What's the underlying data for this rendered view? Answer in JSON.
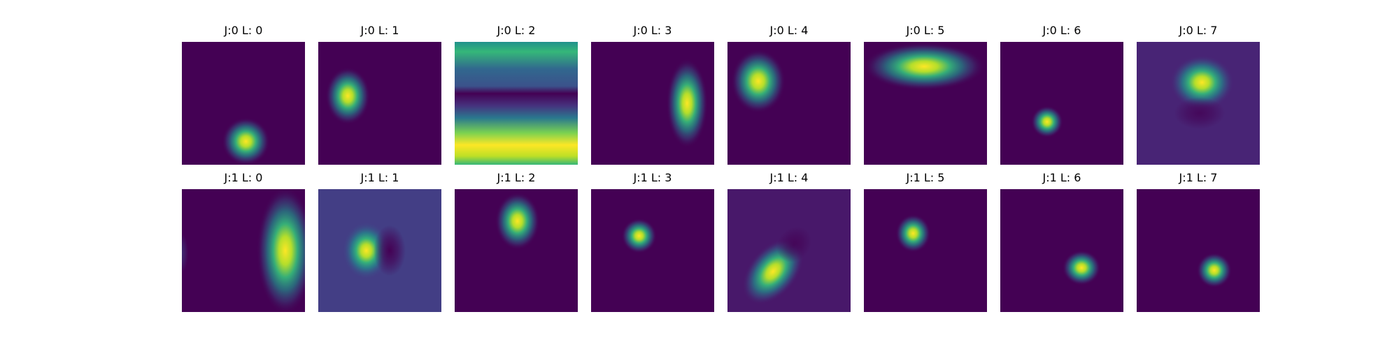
{
  "chart_data": {
    "type": "heatmap",
    "colormap": "viridis",
    "colors": {
      "dark": "#440154",
      "mid": "#21918c",
      "bright": "#fde725"
    },
    "panels": [
      {
        "title": "J:0 L: 0",
        "background": "#440154",
        "blobs": [
          {
            "cx": 0.52,
            "cy": 0.81,
            "sx": 0.075,
            "sy": 0.075,
            "rot": 0,
            "amp": 1.0,
            "color": "#fde725"
          }
        ]
      },
      {
        "title": "J:0 L: 1",
        "background": "#440154",
        "blobs": [
          {
            "cx": 0.24,
            "cy": 0.44,
            "sx": 0.07,
            "sy": 0.09,
            "rot": 0,
            "amp": 1.0,
            "color": "#fde725"
          }
        ]
      },
      {
        "title": "J:0 L: 2",
        "background": "#440154",
        "bands": [
          {
            "y": 0.0,
            "color": "#21918c"
          },
          {
            "y": 0.08,
            "color": "#35b779"
          },
          {
            "y": 0.22,
            "color": "#31688e"
          },
          {
            "y": 0.36,
            "color": "#3b528b"
          },
          {
            "y": 0.42,
            "color": "#440154"
          },
          {
            "y": 0.52,
            "color": "#46327e"
          },
          {
            "y": 0.62,
            "color": "#2a788e"
          },
          {
            "y": 0.74,
            "color": "#7ad151"
          },
          {
            "y": 0.84,
            "color": "#fde725"
          },
          {
            "y": 0.93,
            "color": "#bddf26"
          },
          {
            "y": 1.0,
            "color": "#35b779"
          }
        ]
      },
      {
        "title": "J:0 L: 3",
        "background": "#440154",
        "blobs": [
          {
            "cx": 0.78,
            "cy": 0.5,
            "sx": 0.065,
            "sy": 0.14,
            "rot": 0,
            "amp": 1.0,
            "color": "#fde725"
          }
        ]
      },
      {
        "title": "J:0 L: 4",
        "background": "#440154",
        "blobs": [
          {
            "cx": 0.25,
            "cy": 0.32,
            "sx": 0.085,
            "sy": 0.1,
            "rot": 0,
            "amp": 1.0,
            "color": "#fde725"
          }
        ]
      },
      {
        "title": "J:0 L: 5",
        "background": "#440154",
        "blobs": [
          {
            "cx": 0.49,
            "cy": 0.2,
            "sx": 0.19,
            "sy": 0.075,
            "rot": 0,
            "amp": 1.0,
            "color": "#fde725"
          }
        ]
      },
      {
        "title": "J:0 L: 6",
        "background": "#440154",
        "blobs": [
          {
            "cx": 0.38,
            "cy": 0.65,
            "sx": 0.05,
            "sy": 0.05,
            "rot": 0,
            "amp": 1.0,
            "color": "#fde725"
          }
        ]
      },
      {
        "title": "J:0 L: 7",
        "background": "#482475",
        "blobs": [
          {
            "cx": 0.53,
            "cy": 0.33,
            "sx": 0.1,
            "sy": 0.085,
            "rot": 0,
            "amp": 1.0,
            "color": "#fde725"
          },
          {
            "cx": 0.51,
            "cy": 0.58,
            "sx": 0.08,
            "sy": 0.05,
            "rot": 0,
            "amp": 0.8,
            "color": "#440154"
          }
        ]
      },
      {
        "title": "J:1 L: 0",
        "background": "#440154",
        "blobs": [
          {
            "cx": 0.84,
            "cy": 0.5,
            "sx": 0.09,
            "sy": 0.2,
            "rot": 0,
            "amp": 1.0,
            "color": "#fde725"
          },
          {
            "cx": 0.0,
            "cy": 0.52,
            "sx": 0.02,
            "sy": 0.06,
            "rot": 0,
            "amp": 0.5,
            "color": "#3b528b"
          }
        ]
      },
      {
        "title": "J:1 L: 1",
        "background": "#433e85",
        "blobs": [
          {
            "cx": 0.39,
            "cy": 0.5,
            "sx": 0.075,
            "sy": 0.09,
            "rot": 0,
            "amp": 1.0,
            "color": "#fde725"
          },
          {
            "cx": 0.58,
            "cy": 0.5,
            "sx": 0.05,
            "sy": 0.08,
            "rot": 0,
            "amp": 1.0,
            "color": "#440154"
          }
        ]
      },
      {
        "title": "J:1 L: 2",
        "background": "#440154",
        "blobs": [
          {
            "cx": 0.51,
            "cy": 0.26,
            "sx": 0.07,
            "sy": 0.09,
            "rot": 0,
            "amp": 1.0,
            "color": "#fde725"
          }
        ]
      },
      {
        "title": "J:1 L: 3",
        "background": "#440154",
        "blobs": [
          {
            "cx": 0.39,
            "cy": 0.38,
            "sx": 0.055,
            "sy": 0.055,
            "rot": 0,
            "amp": 1.0,
            "color": "#fde725"
          }
        ]
      },
      {
        "title": "J:1 L: 4",
        "background": "#48186a",
        "blobs": [
          {
            "cx": 0.37,
            "cy": 0.67,
            "sx": 0.075,
            "sy": 0.12,
            "rot": 40,
            "amp": 1.0,
            "color": "#fde725"
          },
          {
            "cx": 0.54,
            "cy": 0.45,
            "sx": 0.05,
            "sy": 0.06,
            "rot": 40,
            "amp": 0.8,
            "color": "#440154"
          }
        ]
      },
      {
        "title": "J:1 L: 5",
        "background": "#440154",
        "blobs": [
          {
            "cx": 0.4,
            "cy": 0.36,
            "sx": 0.055,
            "sy": 0.06,
            "rot": 0,
            "amp": 1.0,
            "color": "#fde725"
          }
        ]
      },
      {
        "title": "J:1 L: 6",
        "background": "#440154",
        "blobs": [
          {
            "cx": 0.66,
            "cy": 0.64,
            "sx": 0.06,
            "sy": 0.055,
            "rot": 0,
            "amp": 1.0,
            "color": "#fde725"
          }
        ]
      },
      {
        "title": "J:1 L: 7",
        "background": "#440154",
        "blobs": [
          {
            "cx": 0.63,
            "cy": 0.66,
            "sx": 0.055,
            "sy": 0.055,
            "rot": 0,
            "amp": 1.0,
            "color": "#fde725"
          }
        ]
      }
    ]
  }
}
